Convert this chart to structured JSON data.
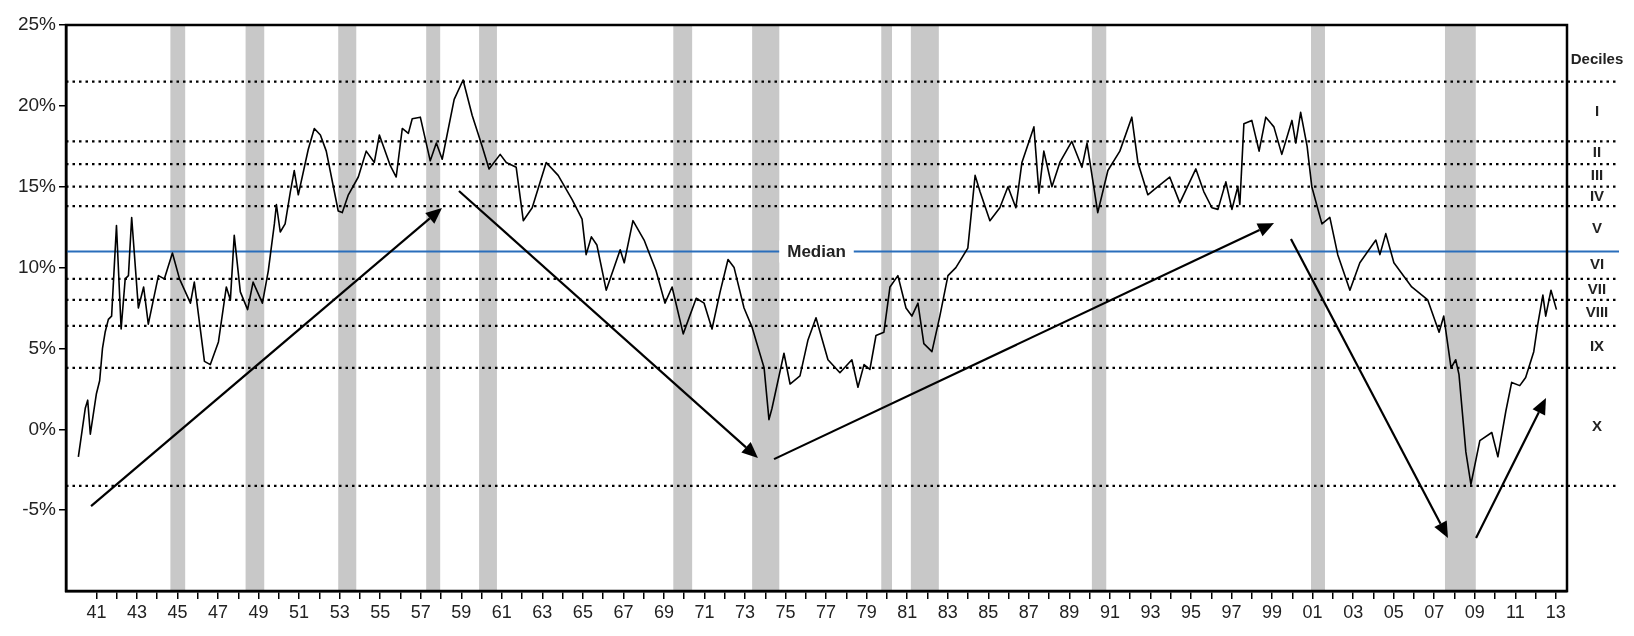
{
  "chart_data": {
    "type": "line",
    "x": [
      1940.11,
      1940.45,
      1940.57,
      1940.7,
      1941.0,
      1941.16,
      1941.3,
      1941.43,
      1941.59,
      1941.75,
      1941.99,
      1942.22,
      1942.42,
      1942.58,
      1942.74,
      1943.07,
      1943.33,
      1943.56,
      1944.06,
      1944.35,
      1944.75,
      1945.1,
      1945.64,
      1945.83,
      1946.33,
      1946.62,
      1947.02,
      1947.41,
      1947.61,
      1947.8,
      1948.1,
      1948.46,
      1948.73,
      1949.19,
      1949.48,
      1949.78,
      1949.88,
      1950.07,
      1950.31,
      1950.57,
      1950.76,
      1950.96,
      1951.45,
      1951.75,
      1952.05,
      1952.34,
      1952.93,
      1953.13,
      1953.43,
      1953.92,
      1954.31,
      1954.71,
      1954.96,
      1955.5,
      1955.79,
      1956.09,
      1956.39,
      1956.58,
      1956.98,
      1957.47,
      1957.77,
      1958.06,
      1958.65,
      1959.09,
      1959.54,
      1960.03,
      1960.37,
      1960.92,
      1961.22,
      1961.71,
      1962.06,
      1962.5,
      1963.19,
      1963.78,
      1964.47,
      1964.96,
      1965.16,
      1965.42,
      1965.69,
      1966.15,
      1966.84,
      1967.04,
      1967.47,
      1968.02,
      1968.61,
      1969.05,
      1969.4,
      1969.95,
      1970.59,
      1970.98,
      1971.37,
      1971.77,
      1972.16,
      1972.46,
      1972.95,
      1973.35,
      1973.94,
      1974.18,
      1974.33,
      1974.92,
      1975.22,
      1975.71,
      1976.1,
      1976.5,
      1977.09,
      1977.68,
      1978.27,
      1978.57,
      1978.87,
      1979.16,
      1979.46,
      1979.85,
      1980.15,
      1980.54,
      1980.94,
      1981.23,
      1981.53,
      1981.82,
      1982.22,
      1982.61,
      1983.01,
      1983.4,
      1983.99,
      1984.35,
      1984.59,
      1985.08,
      1985.57,
      1985.97,
      1986.36,
      1986.66,
      1987.25,
      1987.5,
      1987.74,
      1988.14,
      1988.53,
      1989.12,
      1989.62,
      1989.87,
      1990.4,
      1990.9,
      1991.49,
      1992.08,
      1992.38,
      1992.87,
      1993.36,
      1993.95,
      1994.45,
      1995.24,
      1995.63,
      1996.03,
      1996.33,
      1996.72,
      1997.02,
      1997.31,
      1997.41,
      1997.61,
      1998.0,
      1998.36,
      1998.69,
      1999.09,
      1999.48,
      1999.98,
      2000.17,
      2000.41,
      2000.73,
      2000.96,
      2001.46,
      2001.85,
      2002.24,
      2002.84,
      2003.33,
      2004.12,
      2004.32,
      2004.61,
      2005.01,
      2005.89,
      2006.68,
      2007.24,
      2007.47,
      2007.83,
      2008.06,
      2008.22,
      2008.56,
      2008.81,
      2009.25,
      2009.84,
      2010.14,
      2010.53,
      2010.82,
      2011.22,
      2011.51,
      2011.91,
      2012.11,
      2012.36,
      2012.5,
      2012.76,
      2013.03
    ],
    "series": [
      {
        "color": "#000000",
        "values": [
          -1.7,
          1.3,
          1.8,
          -0.3,
          2.2,
          3.0,
          5.0,
          6.0,
          6.8,
          7.0,
          12.6,
          6.2,
          9.3,
          9.5,
          13.1,
          7.5,
          8.8,
          6.5,
          9.5,
          9.3,
          10.9,
          9.3,
          7.8,
          9.1,
          4.2,
          4.0,
          5.4,
          8.8,
          8.0,
          12.0,
          8.5,
          7.4,
          9.1,
          7.8,
          9.8,
          12.7,
          13.9,
          12.2,
          12.7,
          14.7,
          16.0,
          14.5,
          17.3,
          18.6,
          18.2,
          17.2,
          13.5,
          13.4,
          14.5,
          15.6,
          17.2,
          16.5,
          18.2,
          16.3,
          15.6,
          18.6,
          18.3,
          19.2,
          19.3,
          16.6,
          17.7,
          16.7,
          20.4,
          21.6,
          19.4,
          17.5,
          16.1,
          17.0,
          16.5,
          16.2,
          12.9,
          13.7,
          16.5,
          15.7,
          14.2,
          13.0,
          10.8,
          11.9,
          11.4,
          8.6,
          11.1,
          10.3,
          12.9,
          11.7,
          9.8,
          7.8,
          8.8,
          5.9,
          8.1,
          7.8,
          6.2,
          8.5,
          10.5,
          10.0,
          7.5,
          6.3,
          3.8,
          0.6,
          1.3,
          4.7,
          2.8,
          3.3,
          5.5,
          6.9,
          4.3,
          3.5,
          4.3,
          2.6,
          4.0,
          3.7,
          5.8,
          6.0,
          8.8,
          9.5,
          7.5,
          7.0,
          7.8,
          5.3,
          4.8,
          7.0,
          9.5,
          10.0,
          11.2,
          15.7,
          14.7,
          12.9,
          13.7,
          15.0,
          13.7,
          16.5,
          18.7,
          14.6,
          17.2,
          15.0,
          16.5,
          17.8,
          16.2,
          17.7,
          13.4,
          16.0,
          17.2,
          19.3,
          16.5,
          14.5,
          15.0,
          15.6,
          14.0,
          16.1,
          14.7,
          13.7,
          13.6,
          15.3,
          13.6,
          15.0,
          13.9,
          18.9,
          19.1,
          17.2,
          19.3,
          18.7,
          17.0,
          19.1,
          17.7,
          19.6,
          17.5,
          15.0,
          12.7,
          13.1,
          10.8,
          8.6,
          10.3,
          11.7,
          10.8,
          12.1,
          10.3,
          8.8,
          8.0,
          6.0,
          7.0,
          3.8,
          4.3,
          3.4,
          -1.4,
          -3.4,
          -0.7,
          -0.2,
          -1.7,
          1.1,
          2.9,
          2.7,
          3.2,
          4.8,
          6.5,
          8.3,
          7.0,
          8.6,
          7.4
        ]
      }
    ],
    "xlim": [
      1939.5,
      2013.55
    ],
    "xticks": [
      {
        "value": 1941,
        "label": "41"
      },
      {
        "value": 1942,
        "label": null
      },
      {
        "value": 1943,
        "label": "43"
      },
      {
        "value": 1944,
        "label": null
      },
      {
        "value": 1945,
        "label": "45"
      },
      {
        "value": 1946,
        "label": null
      },
      {
        "value": 1947,
        "label": "47"
      },
      {
        "value": 1948,
        "label": null
      },
      {
        "value": 1949,
        "label": "49"
      },
      {
        "value": 1950,
        "label": null
      },
      {
        "value": 1951,
        "label": "51"
      },
      {
        "value": 1952,
        "label": null
      },
      {
        "value": 1953,
        "label": "53"
      },
      {
        "value": 1954,
        "label": null
      },
      {
        "value": 1955,
        "label": "55"
      },
      {
        "value": 1956,
        "label": null
      },
      {
        "value": 1957,
        "label": "57"
      },
      {
        "value": 1958,
        "label": null
      },
      {
        "value": 1959,
        "label": "59"
      },
      {
        "value": 1960,
        "label": null
      },
      {
        "value": 1961,
        "label": "61"
      },
      {
        "value": 1962,
        "label": null
      },
      {
        "value": 1963,
        "label": "63"
      },
      {
        "value": 1964,
        "label": null
      },
      {
        "value": 1965,
        "label": "65"
      },
      {
        "value": 1966,
        "label": null
      },
      {
        "value": 1967,
        "label": "67"
      },
      {
        "value": 1968,
        "label": null
      },
      {
        "value": 1969,
        "label": "69"
      },
      {
        "value": 1970,
        "label": null
      },
      {
        "value": 1971,
        "label": "71"
      },
      {
        "value": 1972,
        "label": null
      },
      {
        "value": 1973,
        "label": "73"
      },
      {
        "value": 1974,
        "label": null
      },
      {
        "value": 1975,
        "label": "75"
      },
      {
        "value": 1976,
        "label": null
      },
      {
        "value": 1977,
        "label": "77"
      },
      {
        "value": 1978,
        "label": null
      },
      {
        "value": 1979,
        "label": "79"
      },
      {
        "value": 1980,
        "label": null
      },
      {
        "value": 1981,
        "label": "81"
      },
      {
        "value": 1982,
        "label": null
      },
      {
        "value": 1983,
        "label": "83"
      },
      {
        "value": 1984,
        "label": null
      },
      {
        "value": 1985,
        "label": "85"
      },
      {
        "value": 1986,
        "label": null
      },
      {
        "value": 1987,
        "label": "87"
      },
      {
        "value": 1988,
        "label": null
      },
      {
        "value": 1989,
        "label": "89"
      },
      {
        "value": 1990,
        "label": null
      },
      {
        "value": 1991,
        "label": "91"
      },
      {
        "value": 1992,
        "label": null
      },
      {
        "value": 1993,
        "label": "93"
      },
      {
        "value": 1994,
        "label": null
      },
      {
        "value": 1995,
        "label": "95"
      },
      {
        "value": 1996,
        "label": null
      },
      {
        "value": 1997,
        "label": "97"
      },
      {
        "value": 1998,
        "label": null
      },
      {
        "value": 1999,
        "label": "99"
      },
      {
        "value": 2000,
        "label": null
      },
      {
        "value": 2001,
        "label": "01"
      },
      {
        "value": 2002,
        "label": null
      },
      {
        "value": 2003,
        "label": "03"
      },
      {
        "value": 2004,
        "label": null
      },
      {
        "value": 2005,
        "label": "05"
      },
      {
        "value": 2006,
        "label": null
      },
      {
        "value": 2007,
        "label": "07"
      },
      {
        "value": 2008,
        "label": null
      },
      {
        "value": 2009,
        "label": "09"
      },
      {
        "value": 2010,
        "label": null
      },
      {
        "value": 2011,
        "label": "11"
      },
      {
        "value": 2012,
        "label": null
      },
      {
        "value": 2013,
        "label": "13"
      }
    ],
    "ylim": [
      -10,
      25
    ],
    "yticks": [
      {
        "value": -5,
        "label": "-5%"
      },
      {
        "value": 0,
        "label": "0%"
      },
      {
        "value": 5,
        "label": "5%"
      },
      {
        "value": 10,
        "label": "10%"
      },
      {
        "value": 15,
        "label": "15%"
      },
      {
        "value": 20,
        "label": "20%"
      },
      {
        "value": 25,
        "label": "25%"
      }
    ],
    "bands": [
      {
        "axis": "x",
        "from": 1944.65,
        "to": 1945.38,
        "color": "#c8c8c8"
      },
      {
        "axis": "x",
        "from": 1948.36,
        "to": 1949.28,
        "color": "#c8c8c8"
      },
      {
        "axis": "x",
        "from": 1952.93,
        "to": 1953.82,
        "color": "#c8c8c8"
      },
      {
        "axis": "x",
        "from": 1957.27,
        "to": 1957.96,
        "color": "#c8c8c8"
      },
      {
        "axis": "x",
        "from": 1959.88,
        "to": 1960.76,
        "color": "#c8c8c8"
      },
      {
        "axis": "x",
        "from": 1969.46,
        "to": 1970.39,
        "color": "#c8c8c8"
      },
      {
        "axis": "x",
        "from": 1973.35,
        "to": 1974.69,
        "color": "#c8c8c8"
      },
      {
        "axis": "x",
        "from": 1979.72,
        "to": 1980.25,
        "color": "#c8c8c8"
      },
      {
        "axis": "x",
        "from": 1981.18,
        "to": 1982.56,
        "color": "#c8c8c8"
      },
      {
        "axis": "x",
        "from": 1990.11,
        "to": 1990.82,
        "color": "#c8c8c8"
      },
      {
        "axis": "x",
        "from": 2000.92,
        "to": 2001.61,
        "color": "#c8c8c8"
      },
      {
        "axis": "x",
        "from": 2007.53,
        "to": 2009.05,
        "color": "#c8c8c8"
      }
    ],
    "ref_lines": [
      {
        "axis": "y",
        "value": 21.5,
        "color": "#000000",
        "line_style": "dotted"
      },
      {
        "axis": "y",
        "value": 17.8,
        "color": "#000000",
        "line_style": "dotted"
      },
      {
        "axis": "y",
        "value": 16.4,
        "color": "#000000",
        "line_style": "dotted"
      },
      {
        "axis": "y",
        "value": 15.0,
        "color": "#000000",
        "line_style": "dotted"
      },
      {
        "axis": "y",
        "value": 13.8,
        "color": "#000000",
        "line_style": "dotted"
      },
      {
        "axis": "y",
        "value": 11.0,
        "label": "Median",
        "color": "#2a6ebb",
        "line_style": "solid"
      },
      {
        "axis": "y",
        "value": 9.3,
        "color": "#000000",
        "line_style": "dotted"
      },
      {
        "axis": "y",
        "value": 8.0,
        "color": "#000000",
        "line_style": "dotted"
      },
      {
        "axis": "y",
        "value": 6.4,
        "color": "#000000",
        "line_style": "dotted"
      },
      {
        "axis": "y",
        "value": 3.8,
        "color": "#000000",
        "line_style": "dotted"
      },
      {
        "axis": "y",
        "value": -3.5,
        "color": "#000000",
        "line_style": "dotted"
      }
    ],
    "annotations": [
      "Deciles",
      "I",
      "II",
      "III",
      "IV",
      "V",
      "VI",
      "VII",
      "VIII",
      "IX",
      "X"
    ]
  }
}
